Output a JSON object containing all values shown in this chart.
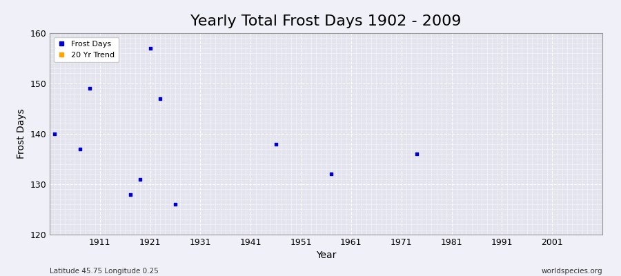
{
  "title": "Yearly Total Frost Days 1902 - 2009",
  "xlabel": "Year",
  "ylabel": "Frost Days",
  "xlim": [
    1901,
    2011
  ],
  "ylim": [
    120,
    160
  ],
  "yticks": [
    120,
    130,
    140,
    150,
    160
  ],
  "xticks": [
    1911,
    1921,
    1931,
    1941,
    1951,
    1961,
    1971,
    1981,
    1991,
    2001
  ],
  "frost_days_x": [
    1902,
    1907,
    1909,
    1917,
    1919,
    1921,
    1923,
    1926,
    1946,
    1957,
    1974
  ],
  "frost_days_y": [
    140,
    137,
    149,
    128,
    131,
    157,
    147,
    126,
    138,
    132,
    136
  ],
  "point_color": "#0000cc",
  "point_size": 8,
  "background_color": "#f0f0f8",
  "plot_bg_color": "#e4e4ee",
  "grid_color": "#ffffff",
  "legend_frost_label": "Frost Days",
  "legend_trend_label": "20 Yr Trend",
  "legend_frost_color": "#0000cc",
  "legend_trend_color": "#ffa500",
  "subtitle_left": "Latitude 45.75 Longitude 0.25",
  "subtitle_right": "worldspecies.org",
  "title_fontsize": 16,
  "axis_label_fontsize": 10,
  "tick_fontsize": 9
}
